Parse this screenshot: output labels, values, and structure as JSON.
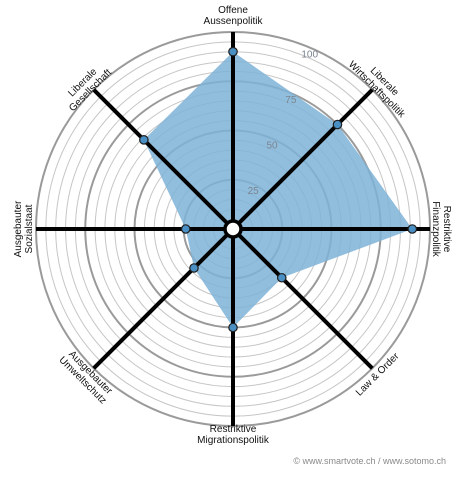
{
  "chart_data": {
    "type": "radar",
    "max": 100,
    "ticks": [
      25,
      50,
      75,
      100
    ],
    "rings_light": [
      5,
      10,
      15,
      20,
      30,
      35,
      40,
      45,
      55,
      60,
      65,
      70,
      80,
      85,
      90,
      95
    ],
    "rings_bold": [
      25,
      50,
      75,
      100
    ],
    "axes": [
      {
        "lines": [
          "Offene",
          "Aussenpolitik"
        ],
        "value": 90
      },
      {
        "lines": [
          "Liberale",
          "Wirtschaftspolitik"
        ],
        "value": 75
      },
      {
        "lines": [
          "Restriktive",
          "Finanzpolitik"
        ],
        "value": 91
      },
      {
        "lines": [
          "Law & Order"
        ],
        "value": 35
      },
      {
        "lines": [
          "Restriktive",
          "Migrationspolitik"
        ],
        "value": 50
      },
      {
        "lines": [
          "Ausgebauter",
          "Umweltschutz"
        ],
        "value": 28
      },
      {
        "lines": [
          "Ausgebauter",
          "Sozialstaat"
        ],
        "value": 24
      },
      {
        "lines": [
          "Liberale",
          "Gesellschaft"
        ],
        "value": 64
      }
    ],
    "colors": {
      "fill": "#7fb3d8",
      "marker": "#4a8fc4",
      "spoke": "#000000",
      "ring": "#c6c6c6",
      "ring_bold": "#9a9a9a"
    },
    "credit": "© www.smartvote.ch / www.sotomo.ch"
  }
}
